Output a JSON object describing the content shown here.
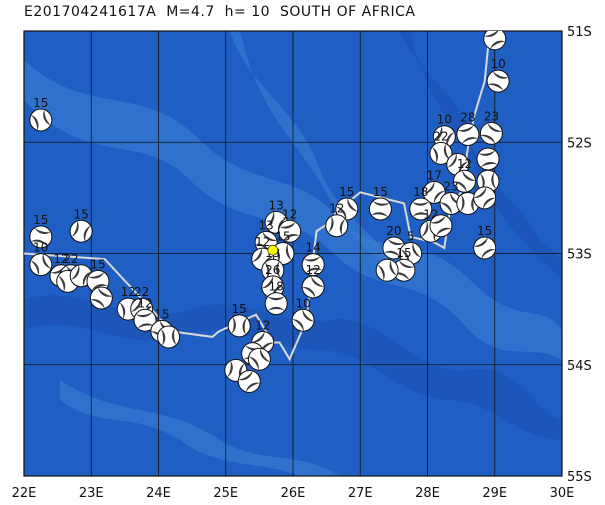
{
  "title": "E201704241617A  M=4.7  h= 10  SOUTH OF AFRICA",
  "map": {
    "lon_range": [
      22,
      30
    ],
    "lat_range": [
      -55,
      -51
    ],
    "lon_ticks": [
      "22E",
      "23E",
      "24E",
      "25E",
      "26E",
      "27E",
      "28E",
      "29E",
      "30E"
    ],
    "lat_ticks": [
      "51S",
      "52S",
      "53S",
      "54S",
      "55S"
    ],
    "grid": true,
    "colors": {
      "ocean": "#1f5fc4",
      "ocean_light": "#3b82d6",
      "ocean_dark": "#1a4fb0",
      "plate_boundary": "#d8d8d8",
      "event": "#ffff00",
      "grid": "#111111"
    }
  },
  "plate_boundary": [
    [
      22.0,
      -53.0
    ],
    [
      23.2,
      -53.05
    ],
    [
      24.2,
      -53.7
    ],
    [
      24.8,
      -53.75
    ],
    [
      24.9,
      -53.7
    ],
    [
      25.45,
      -53.55
    ],
    [
      25.7,
      -53.8
    ],
    [
      25.8,
      -53.8
    ],
    [
      25.95,
      -53.95
    ],
    [
      26.2,
      -53.6
    ],
    [
      26.3,
      -53.05
    ],
    [
      26.35,
      -52.8
    ],
    [
      26.6,
      -52.7
    ],
    [
      26.65,
      -52.6
    ],
    [
      26.9,
      -52.5
    ],
    [
      27.0,
      -52.45
    ],
    [
      27.65,
      -52.55
    ],
    [
      27.75,
      -52.85
    ],
    [
      28.1,
      -52.9
    ],
    [
      28.25,
      -52.95
    ],
    [
      28.35,
      -52.55
    ],
    [
      28.5,
      -52.45
    ],
    [
      28.6,
      -52.05
    ],
    [
      28.7,
      -51.75
    ],
    [
      28.85,
      -51.45
    ],
    [
      28.9,
      -51.15
    ],
    [
      29.05,
      -50.9
    ]
  ],
  "main_event": {
    "id": "E201704241617A",
    "lon": 25.7,
    "lat": -52.97,
    "mag": 4.7,
    "depth": 10
  },
  "mechanisms": [
    {
      "lon": 29.0,
      "lat": -51.07,
      "label": "12"
    },
    {
      "lon": 29.05,
      "lat": -51.45,
      "label": "10"
    },
    {
      "lon": 22.25,
      "lat": -51.8,
      "label": "15"
    },
    {
      "lon": 28.25,
      "lat": -51.95,
      "label": "10"
    },
    {
      "lon": 28.6,
      "lat": -51.93,
      "label": "28"
    },
    {
      "lon": 28.95,
      "lat": -51.92,
      "label": "23"
    },
    {
      "lon": 28.2,
      "lat": -52.1,
      "label": "22"
    },
    {
      "lon": 28.45,
      "lat": -52.2,
      "label": ""
    },
    {
      "lon": 28.9,
      "lat": -52.15,
      "label": ""
    },
    {
      "lon": 28.55,
      "lat": -52.35,
      "label": "12"
    },
    {
      "lon": 28.9,
      "lat": -52.35,
      "label": ""
    },
    {
      "lon": 28.1,
      "lat": -52.45,
      "label": "17"
    },
    {
      "lon": 27.9,
      "lat": -52.6,
      "label": "18"
    },
    {
      "lon": 28.35,
      "lat": -52.55,
      "label": "23"
    },
    {
      "lon": 28.6,
      "lat": -52.55,
      "label": ""
    },
    {
      "lon": 28.85,
      "lat": -52.5,
      "label": ""
    },
    {
      "lon": 27.3,
      "lat": -52.6,
      "label": "15"
    },
    {
      "lon": 26.8,
      "lat": -52.6,
      "label": "15"
    },
    {
      "lon": 26.65,
      "lat": -52.75,
      "label": "12"
    },
    {
      "lon": 28.85,
      "lat": -52.95,
      "label": "15"
    },
    {
      "lon": 27.5,
      "lat": -52.95,
      "label": "20"
    },
    {
      "lon": 27.75,
      "lat": -53.0,
      "label": "5"
    },
    {
      "lon": 28.05,
      "lat": -52.8,
      "label": "12"
    },
    {
      "lon": 28.2,
      "lat": -52.75,
      "label": ""
    },
    {
      "lon": 27.65,
      "lat": -53.15,
      "label": "15"
    },
    {
      "lon": 27.4,
      "lat": -53.15,
      "label": ""
    },
    {
      "lon": 25.75,
      "lat": -52.72,
      "label": "13"
    },
    {
      "lon": 25.95,
      "lat": -52.8,
      "label": "12"
    },
    {
      "lon": 25.6,
      "lat": -52.9,
      "label": "13"
    },
    {
      "lon": 25.85,
      "lat": -53.0,
      "label": "15"
    },
    {
      "lon": 25.55,
      "lat": -53.05,
      "label": "12"
    },
    {
      "lon": 26.3,
      "lat": -53.1,
      "label": "14"
    },
    {
      "lon": 26.3,
      "lat": -53.3,
      "label": "12"
    },
    {
      "lon": 25.7,
      "lat": -53.15,
      "label": "13"
    },
    {
      "lon": 25.7,
      "lat": -53.3,
      "label": "26"
    },
    {
      "lon": 25.75,
      "lat": -53.45,
      "label": "18"
    },
    {
      "lon": 26.15,
      "lat": -53.6,
      "label": "10"
    },
    {
      "lon": 25.2,
      "lat": -53.65,
      "label": "15"
    },
    {
      "lon": 25.55,
      "lat": -53.8,
      "label": "12"
    },
    {
      "lon": 25.4,
      "lat": -53.9,
      "label": ""
    },
    {
      "lon": 25.5,
      "lat": -53.95,
      "label": ""
    },
    {
      "lon": 25.15,
      "lat": -54.05,
      "label": ""
    },
    {
      "lon": 25.35,
      "lat": -54.15,
      "label": ""
    },
    {
      "lon": 22.25,
      "lat": -52.85,
      "label": "15"
    },
    {
      "lon": 22.25,
      "lat": -53.1,
      "label": "10"
    },
    {
      "lon": 22.85,
      "lat": -52.8,
      "label": "15"
    },
    {
      "lon": 22.55,
      "lat": -53.2,
      "label": "12"
    },
    {
      "lon": 22.7,
      "lat": -53.2,
      "label": "22"
    },
    {
      "lon": 22.65,
      "lat": -53.25,
      "label": ""
    },
    {
      "lon": 22.85,
      "lat": -53.2,
      "label": ""
    },
    {
      "lon": 23.1,
      "lat": -53.25,
      "label": "15"
    },
    {
      "lon": 23.15,
      "lat": -53.4,
      "label": ""
    },
    {
      "lon": 23.55,
      "lat": -53.5,
      "label": "12"
    },
    {
      "lon": 23.75,
      "lat": -53.5,
      "label": "22"
    },
    {
      "lon": 23.8,
      "lat": -53.6,
      "label": "12"
    },
    {
      "lon": 24.05,
      "lat": -53.7,
      "label": "15"
    },
    {
      "lon": 24.15,
      "lat": -53.75,
      "label": ""
    }
  ]
}
